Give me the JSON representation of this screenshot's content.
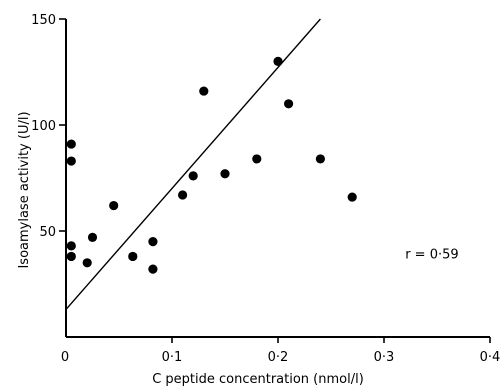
{
  "chart_data": {
    "type": "scatter",
    "title": "",
    "xlabel": "C peptide concentration (nmol/l)",
    "ylabel": "Isoamylase activity (U/l)",
    "xlim": [
      0,
      0.4
    ],
    "ylim": [
      0,
      150
    ],
    "x_ticks": [
      0.1,
      0.2,
      0.3,
      0.4
    ],
    "x_tick_labels": [
      "0·1",
      "0·2",
      "0·3",
      "0·4"
    ],
    "x_origin_label": "0",
    "y_ticks": [
      50,
      100,
      150
    ],
    "y_tick_labels": [
      "50",
      "100",
      "150"
    ],
    "grid": false,
    "series": [
      {
        "points": [
          [
            0.005,
            91
          ],
          [
            0.005,
            83
          ],
          [
            0.005,
            43
          ],
          [
            0.005,
            38
          ],
          [
            0.02,
            35
          ],
          [
            0.025,
            47
          ],
          [
            0.045,
            62
          ],
          [
            0.063,
            38
          ],
          [
            0.082,
            45
          ],
          [
            0.082,
            32
          ],
          [
            0.11,
            67
          ],
          [
            0.12,
            76
          ],
          [
            0.13,
            116
          ],
          [
            0.15,
            77
          ],
          [
            0.18,
            84
          ],
          [
            0.2,
            130
          ],
          [
            0.21,
            110
          ],
          [
            0.24,
            84
          ],
          [
            0.27,
            66
          ]
        ]
      }
    ],
    "regression_line": {
      "x": [
        0,
        0.24
      ],
      "y": [
        13,
        150
      ]
    },
    "annotation": "r = 0·59",
    "annotation_pos": {
      "x": 0.32,
      "y": 37
    }
  }
}
